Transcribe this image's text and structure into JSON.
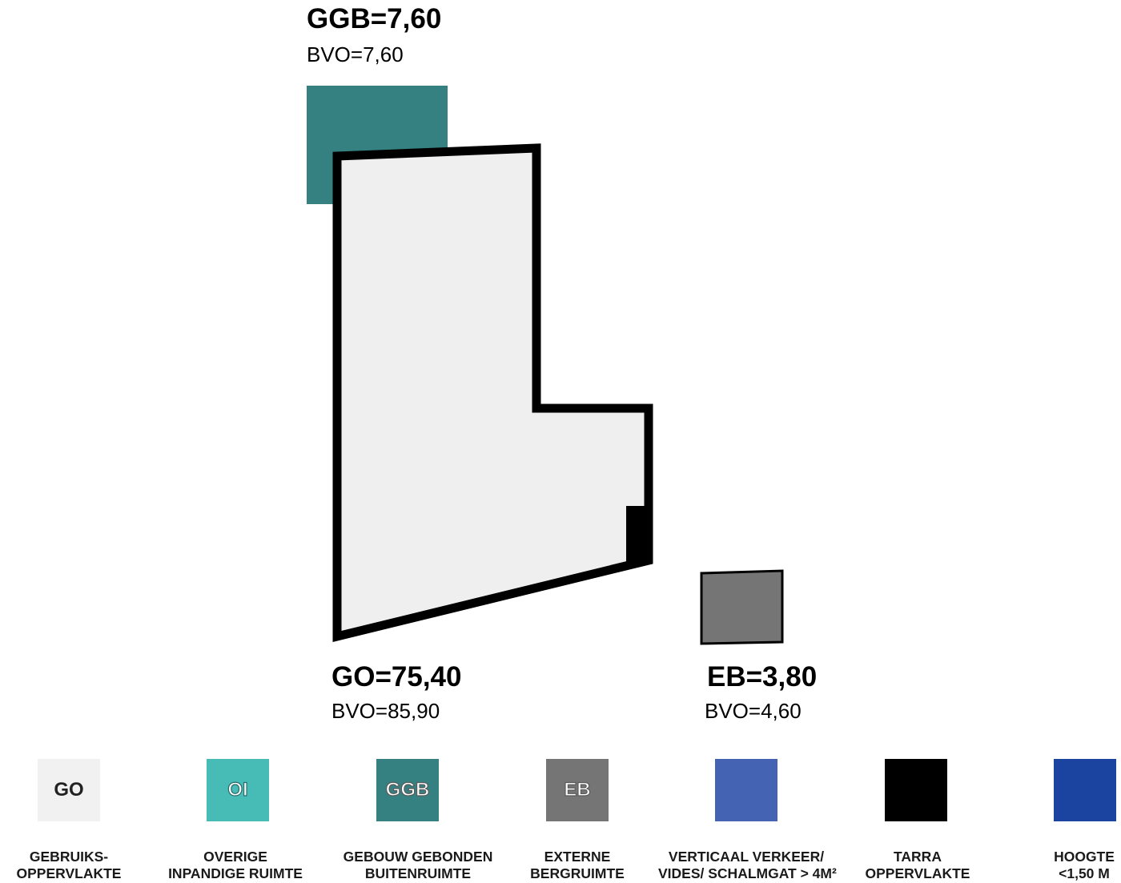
{
  "areas": {
    "ggb": {
      "value": "GGB=7,60",
      "bvo": "BVO=7,60",
      "color": "#358181"
    },
    "go": {
      "value": "GO=75,40",
      "bvo": "BVO=85,90",
      "color": "#efefef"
    },
    "eb": {
      "value": "EB=3,80",
      "bvo": "BVO=4,60",
      "color": "#757575"
    },
    "tarra": {
      "color": "#000000"
    }
  },
  "legend": [
    {
      "code": "GO",
      "label_line1": "GEBRUIKS-",
      "label_line2": "OPPERVLAKTE",
      "color": "#f1f1f1"
    },
    {
      "code": "OI",
      "label_line1": "OVERIGE",
      "label_line2": "INPANDIGE RUIMTE",
      "color": "#47bbb6"
    },
    {
      "code": "GGB",
      "label_line1": "GEBOUW GEBONDEN",
      "label_line2": "BUITENRUIMTE",
      "color": "#358181"
    },
    {
      "code": "EB",
      "label_line1": "EXTERNE",
      "label_line2": "BERGRUIMTE",
      "color": "#757575"
    },
    {
      "code": "",
      "label_line1": "VERTICAAL VERKEER/",
      "label_line2": "VIDES/ SCHALMGAT > 4M²",
      "color": "#4463b3"
    },
    {
      "code": "",
      "label_line1": "TARRA",
      "label_line2": "OPPERVLAKTE",
      "color": "#000000"
    },
    {
      "code": "",
      "label_line1": "HOOGTE",
      "label_line2": "<1,50 M",
      "color": "#1a44a0"
    }
  ]
}
